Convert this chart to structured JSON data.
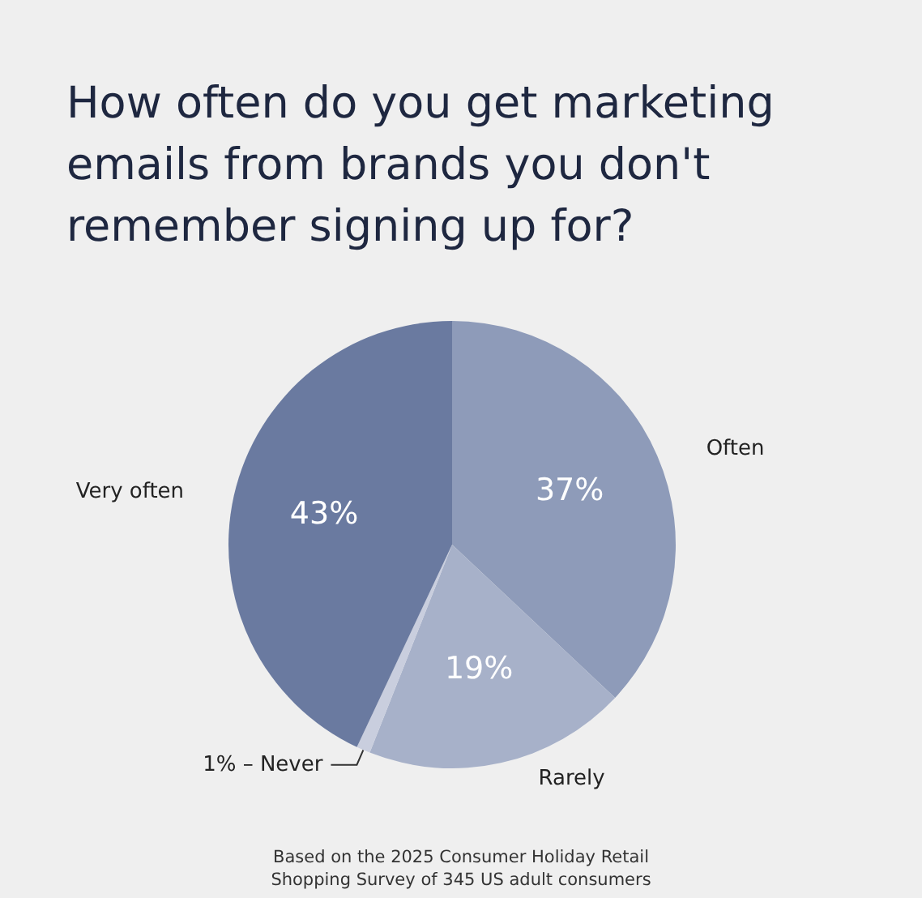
{
  "chart_data": {
    "type": "pie",
    "title": "How often do you get marketing emails from brands you don't remember signing up for?",
    "categories": [
      "Often",
      "Rarely",
      "Never",
      "Very often"
    ],
    "values": [
      37,
      19,
      1,
      43
    ],
    "value_labels": [
      "37%",
      "19%",
      "1%",
      "43%"
    ],
    "colors": [
      "#8e9bb9",
      "#a7b1c9",
      "#c9cede",
      "#6a7aa0"
    ],
    "annotations": [
      "Based on the 2025 Consumer Holiday Retail\nShopping Survey of 345 US adult consumers"
    ]
  }
}
